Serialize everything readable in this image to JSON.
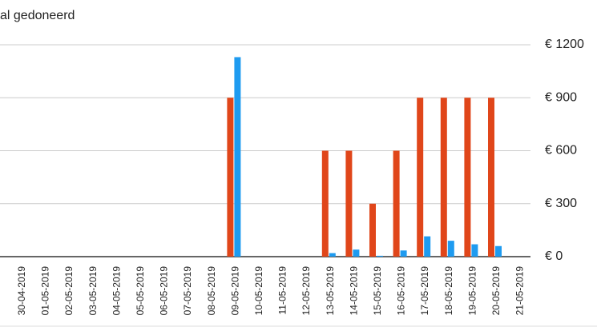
{
  "chart_data": {
    "type": "bar",
    "title": "al gedoneerd",
    "categories": [
      null,
      "30-04-2019",
      "01-05-2019",
      "02-05-2019",
      "03-05-2019",
      "04-05-2019",
      "05-05-2019",
      "06-05-2019",
      "07-05-2019",
      "08-05-2019",
      "09-05-2019",
      "10-05-2019",
      "11-05-2019",
      "12-05-2019",
      "13-05-2019",
      "14-05-2019",
      "15-05-2019",
      "16-05-2019",
      "17-05-2019",
      "18-05-2019",
      "19-05-2019",
      "20-05-2019",
      "21-05-2019"
    ],
    "series": [
      {
        "color": "#e0461a",
        "values": [
          0,
          0,
          0,
          0,
          0,
          0,
          0,
          0,
          0,
          0,
          900,
          0,
          0,
          0,
          600,
          600,
          300,
          600,
          900,
          900,
          900,
          900,
          0
        ]
      },
      {
        "color": "#1e9bf0",
        "values": [
          0,
          0,
          0,
          0,
          0,
          0,
          0,
          0,
          0,
          0,
          1130,
          0,
          0,
          0,
          20,
          40,
          5,
          35,
          115,
          90,
          70,
          60,
          0
        ]
      }
    ],
    "ylim": [
      0,
      1200
    ],
    "yticks": [
      {
        "value": 0,
        "label": "€ 0"
      },
      {
        "value": 300,
        "label": "€ 300"
      },
      {
        "value": 600,
        "label": "€ 600"
      },
      {
        "value": 900,
        "label": "€ 900"
      },
      {
        "value": 1200,
        "label": "€ 1200"
      }
    ],
    "grid": true
  }
}
